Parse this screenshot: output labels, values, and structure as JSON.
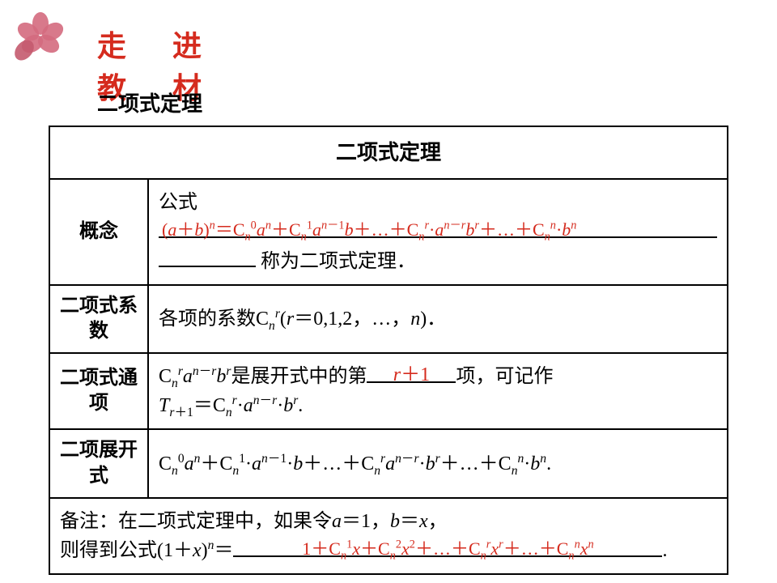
{
  "header": {
    "logo_text": "走 进 教 材",
    "logo_color": "#d52b1e"
  },
  "section_title": "二项式定理",
  "table": {
    "title": "二项式定理",
    "rows": {
      "concept": {
        "label": "概念",
        "text_before": "公式",
        "blank_content_html": "(<span class='ital'>a</span>＋<span class='ital'>b</span>)<sup><span class='ital'>n</span></sup>＝C<sub><span class='ital'>n</span></sub><sup>0</sup><span class='ital'>a</span><sup><span class='ital'>n</span></sup>＋C<sub><span class='ital'>n</span></sub><sup>1</sup><span class='ital'>a</span><sup><span class='ital'>n</span>－1</sup><span class='ital'>b</span>＋…＋C<sub><span class='ital'>n</span></sub><sup><span class='ital'>r</span></sup>·<span class='ital'>a</span><sup><span class='ital'>n</span>－<span class='ital'>r</span></sup><span class='ital'>b</span><sup><span class='ital'>r</span></sup>＋…＋C<sub><span class='ital'>n</span></sub><sup><span class='ital'>n</span></sup>·<span class='ital'>b</span><sup><span class='ital'>n</span></sup>",
        "text_after": "称为二项式定理．"
      },
      "coeff": {
        "label": "二项式系数",
        "content_html": "各项的系数C<sub><span class='ital'>n</span></sub><sup><span class='ital'>r</span></sup>(<span class='ital'>r</span>＝0,1,2，…，<span class='ital'>n</span>)．"
      },
      "general_term": {
        "label": "二项式通项",
        "before_html": "C<sub><span class='ital'>n</span></sub><sup><span class='ital'>r</span></sup><span class='ital'>a</span><sup><span class='ital'>n</span>－<span class='ital'>r</span></sup><span class='ital'>b</span><sup><span class='ital'>r</span></sup>是展开式中的第",
        "blank_html": "<span class='ital'>r</span>＋1",
        "after_html": "项，可记作<br><span class='ital'>T</span><sub><span class='ital'>r</span>＋1</sub>＝C<sub><span class='ital'>n</span></sub><sup><span class='ital'>r</span></sup>·<span class='ital'>a</span><sup><span class='ital'>n</span>－<span class='ital'>r</span></sup>·<span class='ital'>b</span><sup><span class='ital'>r</span></sup>."
      },
      "expansion": {
        "label": "二项展开式",
        "content_html": "C<sub><span class='ital'>n</span></sub><sup>0</sup><span class='ital'>a</span><sup><span class='ital'>n</span></sup>＋C<sub><span class='ital'>n</span></sub><sup>1</sup>·<span class='ital'>a</span><sup><span class='ital'>n</span>－1</sup>·<span class='ital'>b</span>＋…＋C<sub><span class='ital'>n</span></sub><sup><span class='ital'>r</span></sup><span class='ital'>a</span><sup><span class='ital'>n</span>－<span class='ital'>r</span></sup>·<span class='ital'>b</span><sup><span class='ital'>r</span></sup>＋…＋C<sub><span class='ital'>n</span></sub><sup><span class='ital'>n</span></sup>·<span class='ital'>b</span><sup><span class='ital'>n</span></sup>."
      },
      "note": {
        "before_html": "备注：在二项式定理中，如果令<span class='ital'>a</span>＝1，<span class='ital'>b</span>＝<span class='ital'>x</span>，<br>则得到公式(1＋<span class='ital'>x</span>)<sup><span class='ital'>n</span></sup>＝",
        "blank_html": "1＋C<sub><span class='ital'>n</span></sub><sup>1</sup><span class='ital'>x</span>＋C<sub><span class='ital'>n</span></sub><sup>2</sup><span class='ital'>x</span><sup>2</sup>＋…＋C<sub><span class='ital'>n</span></sub><sup><span class='ital'>r</span></sup><span class='ital'>x</span><sup><span class='ital'>r</span></sup>＋…＋C<sub><span class='ital'>n</span></sub><sup><span class='ital'>n</span></sup><span class='ital'>x</span><sup><span class='ital'>n</span></sup>",
        "after_html": "."
      }
    }
  },
  "colors": {
    "red": "#d52b1e",
    "border": "#000000",
    "text": "#000000",
    "bg": "#ffffff"
  },
  "typography": {
    "body_fontsize": 24,
    "title_fontsize": 26,
    "sup_sub_scale": 0.65
  }
}
